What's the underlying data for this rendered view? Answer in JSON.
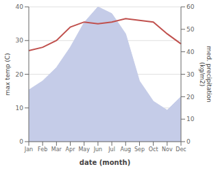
{
  "chart_data": {
    "type": "line",
    "categories": [
      "Jan",
      "Feb",
      "Mar",
      "Apr",
      "May",
      "Jun",
      "Jul",
      "Aug",
      "Sep",
      "Oct",
      "Nov",
      "Dec"
    ],
    "series": [
      {
        "type": "area",
        "axis": "y2",
        "color": "#c5cce8",
        "values": [
          23,
          27,
          33,
          42,
          53,
          60,
          57,
          48,
          27,
          18,
          14,
          20
        ]
      },
      {
        "type": "line",
        "color": "#c0504d",
        "values": [
          27.0,
          28.0,
          30.0,
          34.0,
          35.5,
          35.0,
          35.5,
          36.5,
          36.0,
          35.5,
          32.0,
          29.0
        ]
      }
    ],
    "xlabel": "date (month)",
    "ylabel": "max temp (C)",
    "y2label": "med. precipitation\n(kg/m2)",
    "ylim": [
      0,
      40
    ],
    "yticks": [
      0,
      10,
      20,
      30,
      40
    ],
    "y2lim": [
      0,
      60
    ],
    "y2ticks": [
      0,
      10,
      20,
      30,
      40,
      50,
      60
    ],
    "grid": true
  }
}
